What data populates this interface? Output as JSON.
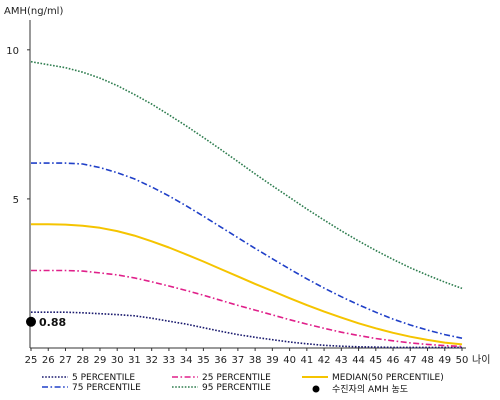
{
  "chart_data": {
    "type": "line",
    "ylabel": "AMH(ng/ml)",
    "xlabel": "나이",
    "xlim": [
      25,
      50
    ],
    "ylim": [
      0,
      11
    ],
    "yticks": [
      5,
      10
    ],
    "x": [
      25,
      26,
      27,
      28,
      29,
      30,
      31,
      32,
      33,
      34,
      35,
      36,
      37,
      38,
      39,
      40,
      41,
      42,
      43,
      44,
      45,
      46,
      47,
      48,
      49,
      50
    ],
    "series": [
      {
        "name": "5 PERCENTILE",
        "color": "#1a1a6e",
        "style": "dotted",
        "values": [
          1.2,
          1.2,
          1.2,
          1.18,
          1.15,
          1.12,
          1.08,
          1.0,
          0.9,
          0.8,
          0.68,
          0.56,
          0.45,
          0.36,
          0.28,
          0.2,
          0.14,
          0.09,
          0.06,
          0.04,
          0.03,
          0.02,
          0.02,
          0.02,
          0.02,
          0.02
        ]
      },
      {
        "name": "25 PERCENTILE",
        "color": "#e0208a",
        "style": "dashdot",
        "values": [
          2.6,
          2.6,
          2.6,
          2.58,
          2.52,
          2.45,
          2.35,
          2.22,
          2.08,
          1.93,
          1.77,
          1.6,
          1.43,
          1.27,
          1.11,
          0.95,
          0.8,
          0.66,
          0.53,
          0.42,
          0.32,
          0.24,
          0.17,
          0.12,
          0.08,
          0.05
        ]
      },
      {
        "name": "MEDIAN(50 PERCENTILE)",
        "color": "#f5c400",
        "style": "solid",
        "values": [
          4.15,
          4.15,
          4.14,
          4.1,
          4.03,
          3.92,
          3.77,
          3.58,
          3.37,
          3.14,
          2.9,
          2.65,
          2.4,
          2.15,
          1.91,
          1.67,
          1.44,
          1.22,
          1.02,
          0.83,
          0.66,
          0.51,
          0.38,
          0.27,
          0.18,
          0.12
        ]
      },
      {
        "name": "75 PERCENTILE",
        "color": "#2040c8",
        "style": "dashdot",
        "values": [
          6.2,
          6.2,
          6.2,
          6.17,
          6.05,
          5.88,
          5.67,
          5.4,
          5.1,
          4.77,
          4.42,
          4.06,
          3.7,
          3.34,
          2.99,
          2.65,
          2.32,
          2.01,
          1.72,
          1.45,
          1.2,
          0.97,
          0.77,
          0.6,
          0.45,
          0.33
        ]
      },
      {
        "name": "95 PERCENTILE",
        "color": "#2e7d4f",
        "style": "dotted",
        "values": [
          9.6,
          9.5,
          9.4,
          9.25,
          9.05,
          8.8,
          8.5,
          8.18,
          7.82,
          7.45,
          7.06,
          6.66,
          6.25,
          5.84,
          5.44,
          5.05,
          4.66,
          4.29,
          3.93,
          3.59,
          3.27,
          2.97,
          2.69,
          2.44,
          2.21,
          2.0
        ]
      }
    ],
    "marker": {
      "legend_label": "수진자의 AMH 농도",
      "x": 25,
      "y": 0.88,
      "label": "0.88",
      "color": "#000000"
    },
    "legend_placement": "bottom",
    "grid": false
  }
}
